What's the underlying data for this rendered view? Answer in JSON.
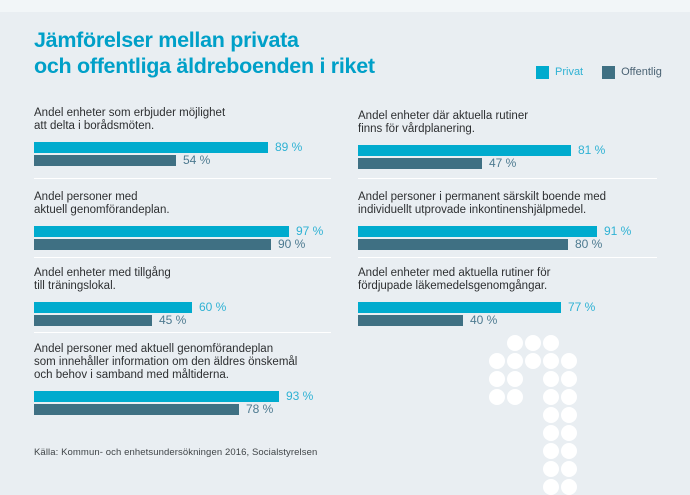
{
  "title": {
    "line1": "Jämförelser mellan privata",
    "line2": "och offentliga äldreboenden i riket"
  },
  "legend": {
    "items": [
      {
        "label": "Privat",
        "swatch_color": "#00abce",
        "text_color": "#2fb2d4"
      },
      {
        "label": "Offentlig",
        "swatch_color": "#3f7083",
        "text_color": "#4a6273"
      }
    ]
  },
  "colors": {
    "background": "#e9eef2",
    "top_strip": "#f2f6f8",
    "title": "#00a0c8",
    "privat_bar": "#00abce",
    "offentlig_bar": "#3f7083",
    "privat_value_text": "#2fb2d4",
    "offentlig_value_text": "#4d7a90",
    "section_text": "#2d2f31",
    "divider": "#ffffff",
    "dots": "#ffffff",
    "source_text": "#3f4447"
  },
  "chart_data": {
    "type": "bar",
    "orientation": "horizontal",
    "unit": "%",
    "xlim": [
      0,
      100
    ],
    "series_names": [
      "Privat",
      "Offentlig"
    ],
    "legend_position": "top-right",
    "grid": false,
    "groups": [
      {
        "column": "left",
        "label_lines": [
          "Andel enheter som erbjuder möjlighet",
          "att delta i borådsmöten."
        ],
        "privat": {
          "value": 89,
          "display": "89 %"
        },
        "offentlig": {
          "value": 54,
          "display": "54 %"
        }
      },
      {
        "column": "left",
        "label_lines": [
          "Andel personer med",
          "aktuell genomförandeplan."
        ],
        "privat": {
          "value": 97,
          "display": "97 %"
        },
        "offentlig": {
          "value": 90,
          "display": "90 %"
        }
      },
      {
        "column": "left",
        "label_lines": [
          "Andel enheter med tillgång",
          "till träningslokal."
        ],
        "privat": {
          "value": 60,
          "display": "60 %"
        },
        "offentlig": {
          "value": 45,
          "display": "45 %"
        }
      },
      {
        "column": "left",
        "label_lines": [
          "Andel personer med aktuell genomförandeplan",
          "som innehåller information om den äldres önskemål",
          "och behov i samband med måltiderna."
        ],
        "privat": {
          "value": 93,
          "display": "93 %"
        },
        "offentlig": {
          "value": 78,
          "display": "78 %"
        }
      },
      {
        "column": "right",
        "label_lines": [
          "Andel enheter där aktuella rutiner",
          "finns för vårdplanering."
        ],
        "privat": {
          "value": 81,
          "display": "81 %"
        },
        "offentlig": {
          "value": 47,
          "display": "47 %"
        }
      },
      {
        "column": "right",
        "label_lines": [
          "Andel personer i permanent särskilt boende med",
          "individuellt utprovade inkontinenshjälpmedel."
        ],
        "privat": {
          "value": 91,
          "display": "91 %"
        },
        "offentlig": {
          "value": 80,
          "display": "80 %"
        }
      },
      {
        "column": "right",
        "label_lines": [
          "Andel enheter med aktuella rutiner för",
          "fördjupade läkemedelsgenomgångar."
        ],
        "privat": {
          "value": 77,
          "display": "77 %"
        },
        "offentlig": {
          "value": 40,
          "display": "40 %"
        }
      }
    ]
  },
  "decoration": {
    "name": "dotted-arrow",
    "pattern": [
      [
        0,
        1,
        1,
        1,
        0
      ],
      [
        1,
        1,
        1,
        1,
        1
      ],
      [
        1,
        1,
        0,
        1,
        1
      ],
      [
        1,
        1,
        0,
        1,
        1
      ],
      [
        0,
        0,
        0,
        1,
        1
      ],
      [
        0,
        0,
        0,
        1,
        1
      ],
      [
        0,
        0,
        0,
        1,
        1
      ],
      [
        0,
        0,
        0,
        1,
        1
      ],
      [
        0,
        0,
        0,
        1,
        1
      ]
    ]
  },
  "source": "Källa: Kommun- och enhetsundersökningen 2016, Socialstyrelsen"
}
